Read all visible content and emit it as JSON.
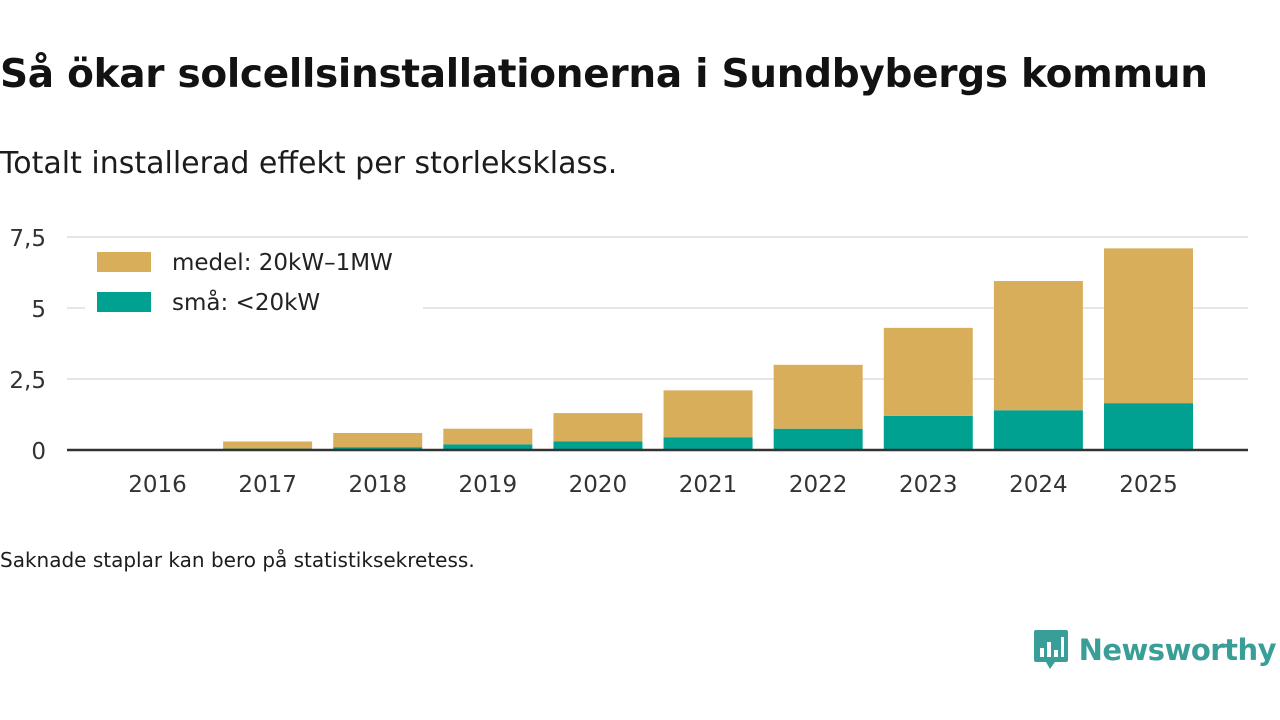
{
  "title": "Så ökar solcellsinstallationerna i Sundbybergs kommun",
  "subtitle": "Totalt installerad effekt per storleksklass.",
  "note": "Saknade staplar kan bero på statistiksekretess.",
  "brand": {
    "name": "Newsworthy",
    "icon": "newsworthy-logo-icon",
    "color": "#3a9e98"
  },
  "colors": {
    "medel": "#d9ae5b",
    "sma": "#00a191",
    "grid": "#dddddd",
    "axis": "#333333"
  },
  "chart_data": {
    "type": "bar",
    "stacked": true,
    "title": "Så ökar solcellsinstallationerna i Sundbybergs kommun",
    "subtitle": "Totalt installerad effekt per storleksklass.",
    "xlabel": "",
    "ylabel": "",
    "ylim": [
      0,
      7.5
    ],
    "yticks": [
      0,
      2.5,
      5,
      7.5
    ],
    "ytick_labels": [
      "0",
      "2,5",
      "5",
      "7,5"
    ],
    "grid": true,
    "legend_position": "top-left",
    "categories": [
      "2016",
      "2017",
      "2018",
      "2019",
      "2020",
      "2021",
      "2022",
      "2023",
      "2024",
      "2025"
    ],
    "series": [
      {
        "name": "små: <20kW",
        "color": "#00a191",
        "values": [
          0,
          0.05,
          0.1,
          0.2,
          0.3,
          0.45,
          0.75,
          1.2,
          1.4,
          1.65
        ]
      },
      {
        "name": "medel: 20kW–1MW",
        "color": "#d9ae5b",
        "values": [
          0,
          0.25,
          0.5,
          0.55,
          1.0,
          1.65,
          2.25,
          3.1,
          4.55,
          5.45
        ]
      }
    ],
    "legend_order": [
      "medel: 20kW–1MW",
      "små: <20kW"
    ]
  }
}
